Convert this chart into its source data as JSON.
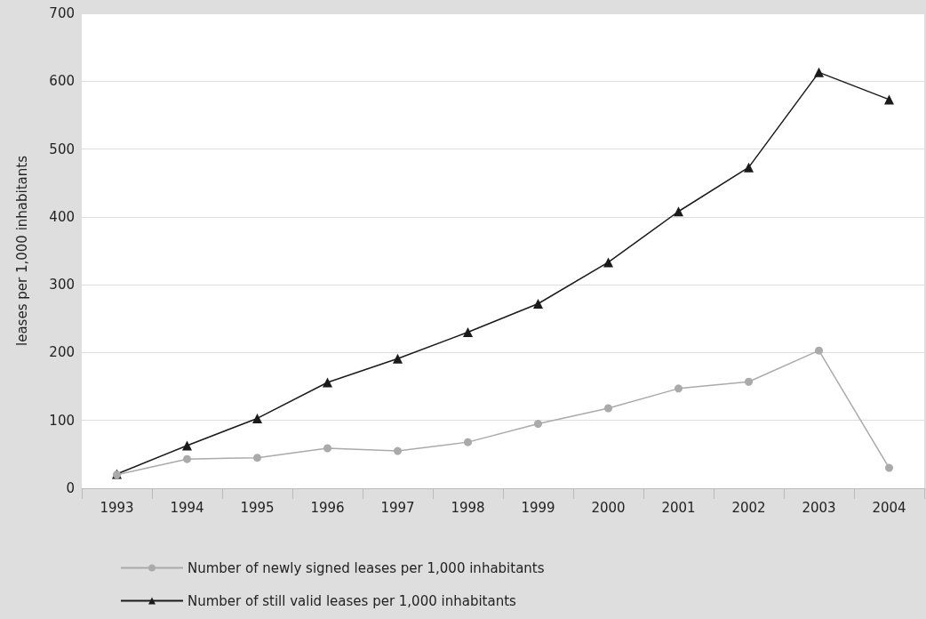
{
  "chart_data": {
    "type": "line",
    "ylabel": "leases per 1,000 inhabitants",
    "categories": [
      "1993",
      "1994",
      "1995",
      "1996",
      "1997",
      "1998",
      "1999",
      "2000",
      "2001",
      "2002",
      "2003",
      "2004"
    ],
    "series": [
      {
        "name": "Number of newly signed leases per 1,000 inhabitants",
        "color": "#aaaaaa",
        "marker": "circle",
        "values": [
          20,
          43,
          45,
          59,
          55,
          68,
          95,
          118,
          147,
          157,
          203,
          30
        ]
      },
      {
        "name": "Number of still valid leases per 1,000 inhabitants",
        "color": "#1a1a1a",
        "marker": "triangle",
        "values": [
          21,
          63,
          103,
          156,
          191,
          230,
          272,
          333,
          408,
          473,
          613,
          573
        ]
      }
    ],
    "ylim": [
      0,
      700
    ],
    "yticks": [
      0,
      100,
      200,
      300,
      400,
      500,
      600,
      700
    ],
    "grid": "y",
    "legend": "bottom left",
    "line_style": "solid"
  }
}
